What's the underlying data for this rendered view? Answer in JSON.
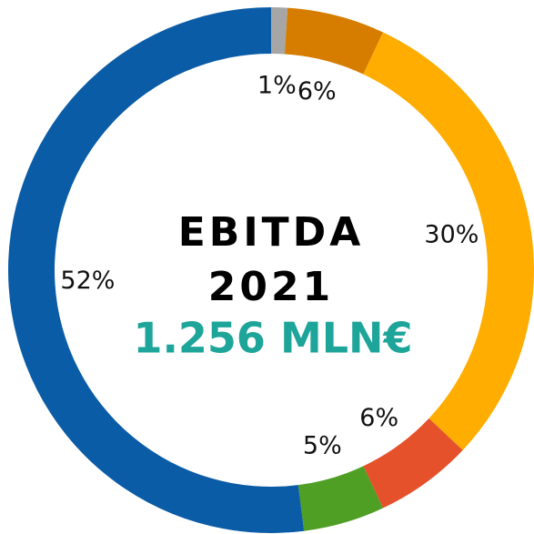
{
  "chart_data": {
    "type": "donut",
    "title": "EBITDA",
    "subtitle": "2021",
    "total_label": "1.256 MLN€",
    "values": [
      1,
      6,
      30,
      6,
      5,
      52
    ],
    "value_labels": [
      "1%",
      "6%",
      "30%",
      "6%",
      "5%",
      "52%"
    ],
    "colors": [
      "#a6a6a6",
      "#d67d00",
      "#ffad00",
      "#e5512a",
      "#4f9f25",
      "#0b5ca6"
    ],
    "total_color": "#1ea59a"
  }
}
